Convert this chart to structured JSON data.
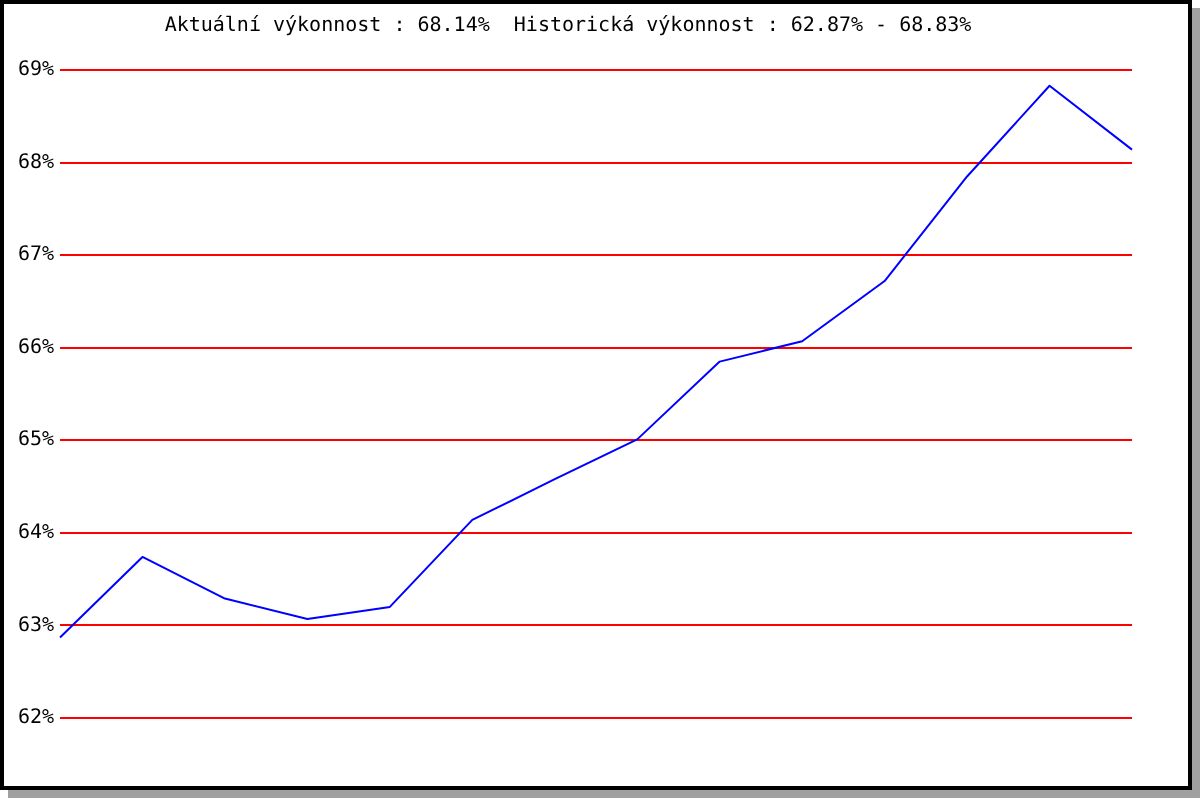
{
  "chart_data": {
    "type": "line",
    "title": "Aktuální výkonnost : 68.14%  Historická výkonnost : 62.87% - 68.83%",
    "categories": [
      null,
      null,
      null,
      null,
      null,
      null,
      null,
      null,
      null,
      null,
      null,
      null,
      null,
      null
    ],
    "series": [
      {
        "color": "#0000ff",
        "values": [
          62.87,
          63.74,
          63.29,
          63.07,
          63.2,
          64.14,
          64.58,
          65.01,
          65.85,
          66.07,
          66.72,
          67.85,
          68.83,
          68.14
        ]
      }
    ],
    "ylim": [
      62,
      69
    ],
    "yticks": [
      {
        "value": 62,
        "label": "62%"
      },
      {
        "value": 63,
        "label": "63%"
      },
      {
        "value": 64,
        "label": "64%"
      },
      {
        "value": 65,
        "label": "65%"
      },
      {
        "value": 66,
        "label": "66%"
      },
      {
        "value": 67,
        "label": "67%"
      },
      {
        "value": 68,
        "label": "68%"
      },
      {
        "value": 69,
        "label": "69%"
      }
    ],
    "grid": "y"
  }
}
